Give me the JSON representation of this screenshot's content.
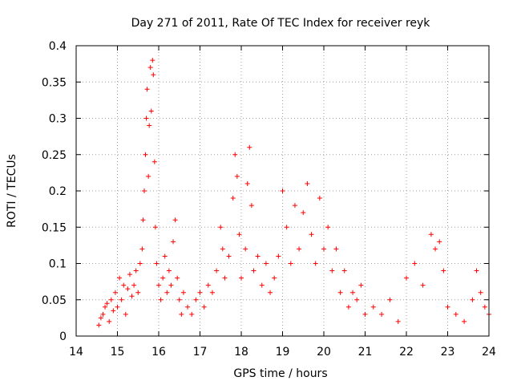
{
  "chart_data": {
    "type": "scatter",
    "title": "Day 271 of 2011, Rate Of TEC Index for receiver reyk",
    "xlabel": "GPS time / hours",
    "ylabel": "ROTI / TECUs",
    "xlim": [
      14,
      24
    ],
    "ylim": [
      0,
      0.4
    ],
    "x_ticks": [
      "14",
      "15",
      "16",
      "17",
      "18",
      "19",
      "20",
      "21",
      "22",
      "23",
      "24"
    ],
    "y_ticks": [
      "0",
      "0.05",
      "0.1",
      "0.15",
      "0.2",
      "0.25",
      "0.3",
      "0.35",
      "0.4"
    ],
    "x_tick_values": [
      14,
      15,
      16,
      17,
      18,
      19,
      20,
      21,
      22,
      23,
      24
    ],
    "y_tick_values": [
      0,
      0.05,
      0.1,
      0.15,
      0.2,
      0.25,
      0.3,
      0.35,
      0.4
    ],
    "grid": true,
    "marker": "+",
    "marker_color": "#ff0000",
    "series": [
      {
        "x": [
          14.55,
          14.6,
          14.65,
          14.7,
          14.75,
          14.8,
          14.85,
          14.9,
          14.95,
          15.0,
          15.05,
          15.1,
          15.15,
          15.2,
          15.25,
          15.3,
          15.35,
          15.4,
          15.45,
          15.5,
          15.55,
          15.6,
          15.62,
          15.65,
          15.68,
          15.7,
          15.72,
          15.75,
          15.77,
          15.8,
          15.82,
          15.85,
          15.87,
          15.9,
          15.92,
          15.95,
          16.0,
          16.05,
          16.1,
          16.15,
          16.2,
          16.25,
          16.3,
          16.35,
          16.4,
          16.45,
          16.5,
          16.55,
          16.6,
          16.7,
          16.8,
          16.9,
          17.0,
          17.1,
          17.2,
          17.3,
          17.4,
          17.5,
          17.55,
          17.6,
          17.7,
          17.8,
          17.85,
          17.9,
          17.95,
          18.0,
          18.1,
          18.15,
          18.2,
          18.25,
          18.3,
          18.4,
          18.5,
          18.6,
          18.7,
          18.8,
          18.9,
          19.0,
          19.1,
          19.2,
          19.3,
          19.4,
          19.5,
          19.6,
          19.7,
          19.8,
          19.9,
          20.0,
          20.1,
          20.2,
          20.3,
          20.4,
          20.5,
          20.6,
          20.7,
          20.8,
          20.9,
          21.0,
          21.2,
          21.4,
          21.6,
          21.8,
          22.0,
          22.2,
          22.4,
          22.6,
          22.7,
          22.8,
          22.9,
          23.0,
          23.2,
          23.4,
          23.6,
          23.7,
          23.8,
          23.9,
          24.0
        ],
        "y": [
          0.015,
          0.025,
          0.03,
          0.04,
          0.045,
          0.02,
          0.05,
          0.035,
          0.06,
          0.04,
          0.08,
          0.05,
          0.07,
          0.03,
          0.065,
          0.085,
          0.055,
          0.07,
          0.09,
          0.06,
          0.1,
          0.12,
          0.16,
          0.2,
          0.25,
          0.3,
          0.34,
          0.22,
          0.29,
          0.37,
          0.31,
          0.38,
          0.36,
          0.24,
          0.15,
          0.1,
          0.07,
          0.05,
          0.08,
          0.11,
          0.06,
          0.09,
          0.07,
          0.13,
          0.16,
          0.08,
          0.05,
          0.03,
          0.06,
          0.04,
          0.03,
          0.05,
          0.06,
          0.04,
          0.07,
          0.06,
          0.09,
          0.15,
          0.12,
          0.08,
          0.11,
          0.19,
          0.25,
          0.22,
          0.14,
          0.08,
          0.12,
          0.21,
          0.26,
          0.18,
          0.09,
          0.11,
          0.07,
          0.1,
          0.06,
          0.08,
          0.11,
          0.2,
          0.15,
          0.1,
          0.18,
          0.12,
          0.17,
          0.21,
          0.14,
          0.1,
          0.19,
          0.12,
          0.15,
          0.09,
          0.12,
          0.06,
          0.09,
          0.04,
          0.06,
          0.05,
          0.07,
          0.03,
          0.04,
          0.03,
          0.05,
          0.02,
          0.08,
          0.1,
          0.07,
          0.14,
          0.12,
          0.13,
          0.09,
          0.04,
          0.03,
          0.02,
          0.05,
          0.09,
          0.06,
          0.04,
          0.03
        ]
      }
    ]
  }
}
